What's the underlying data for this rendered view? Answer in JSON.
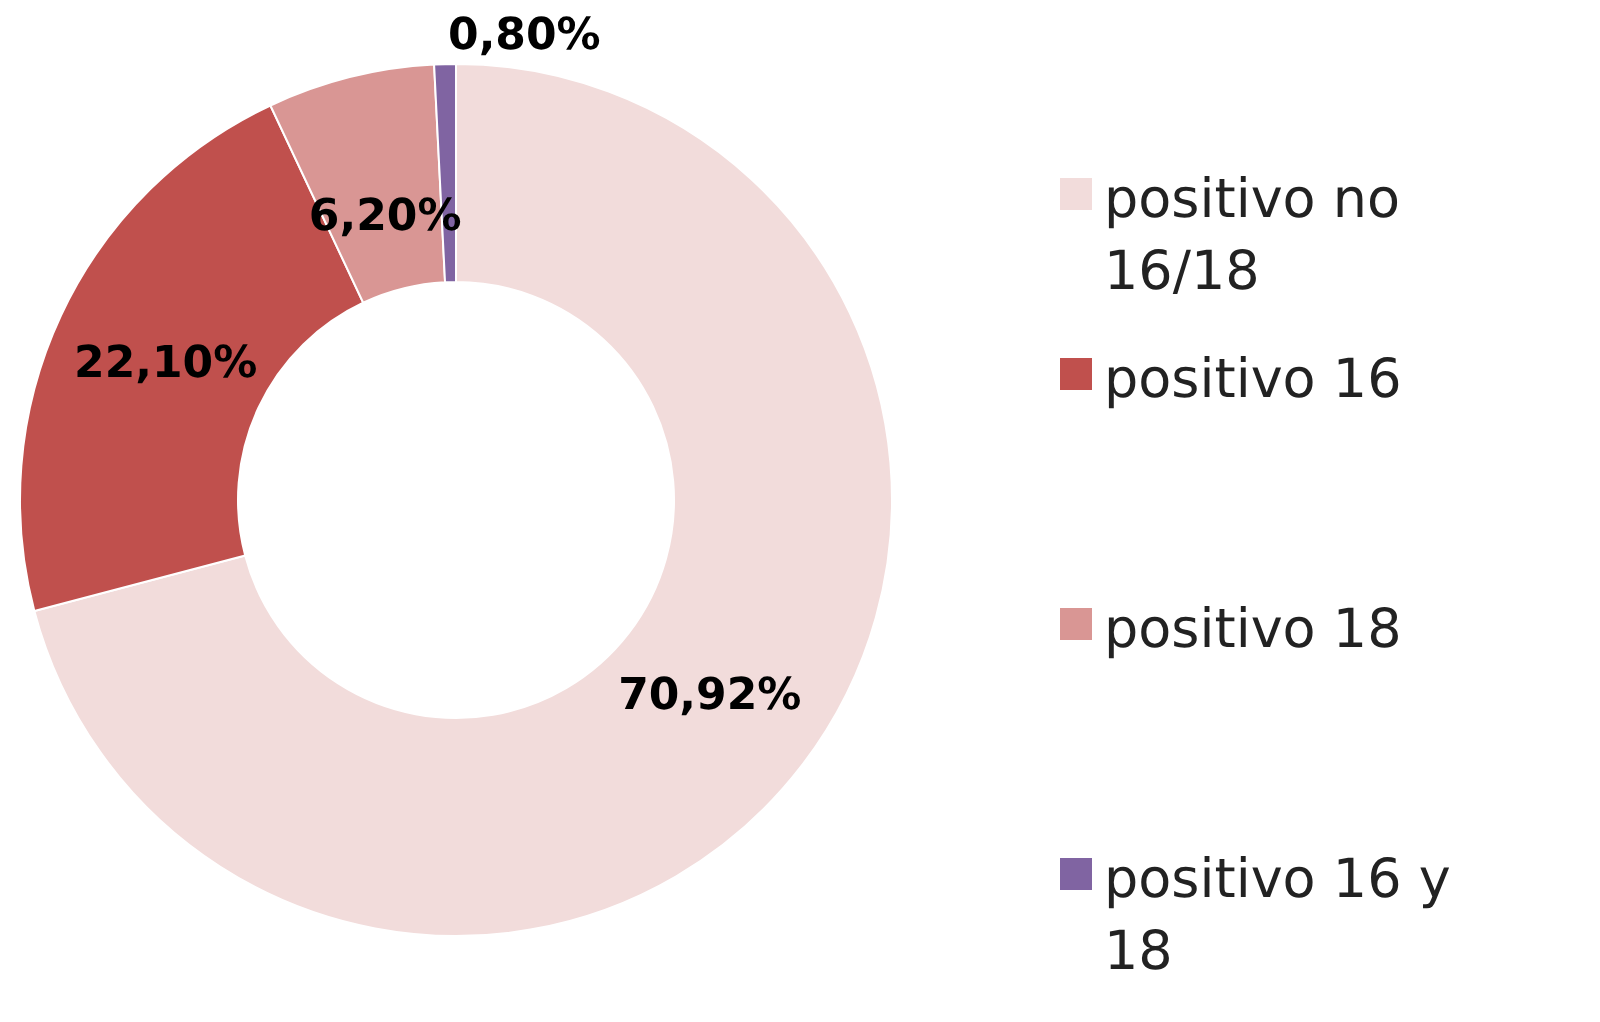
{
  "chart_data": {
    "type": "donut",
    "categories": [
      "positivo no 16/18",
      "positivo 16",
      "positivo 18",
      "positivo 16 y 18"
    ],
    "values": [
      70.92,
      22.1,
      6.2,
      0.8
    ],
    "colors": [
      "#f2dcdb",
      "#c0504d",
      "#d99694",
      "#8064a2"
    ],
    "value_labels": [
      "70,92%",
      "22,10%",
      "6,20%",
      "0,80%"
    ],
    "legend": "right"
  }
}
